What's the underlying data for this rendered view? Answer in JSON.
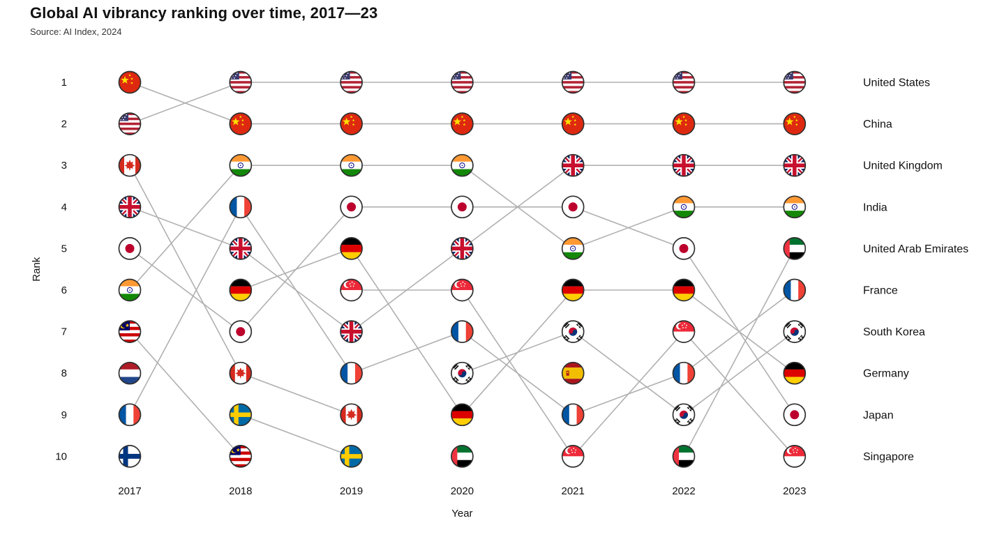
{
  "colors": {
    "line": "#b0b0b0",
    "text": "#111111",
    "subtitle": "#333333",
    "marker_ring": "#2f2f2f"
  },
  "chart_data": {
    "type": "bump",
    "title": "Global AI vibrancy ranking over time, 2017—23",
    "source": "Source: AI Index, 2024",
    "xlabel": "Year",
    "ylabel": "Rank",
    "years": [
      2017,
      2018,
      2019,
      2020,
      2021,
      2022,
      2023
    ],
    "ranks": [
      1,
      2,
      3,
      4,
      5,
      6,
      7,
      8,
      9,
      10
    ],
    "legend_position": "right",
    "grid": false,
    "series": [
      {
        "name": "United States",
        "flag": "us",
        "ranks": [
          2,
          1,
          1,
          1,
          1,
          1,
          1
        ]
      },
      {
        "name": "China",
        "flag": "cn",
        "ranks": [
          1,
          2,
          2,
          2,
          2,
          2,
          2
        ]
      },
      {
        "name": "United Kingdom",
        "flag": "gb",
        "ranks": [
          4,
          5,
          7,
          5,
          3,
          3,
          3
        ]
      },
      {
        "name": "India",
        "flag": "in",
        "ranks": [
          6,
          3,
          3,
          3,
          5,
          4,
          4
        ]
      },
      {
        "name": "United Arab Emirates",
        "flag": "ae",
        "ranks": [
          null,
          null,
          null,
          10,
          null,
          10,
          5
        ]
      },
      {
        "name": "France",
        "flag": "fr",
        "ranks": [
          9,
          4,
          8,
          7,
          9,
          8,
          6
        ]
      },
      {
        "name": "South Korea",
        "flag": "kr",
        "ranks": [
          null,
          null,
          null,
          8,
          7,
          9,
          7
        ]
      },
      {
        "name": "Germany",
        "flag": "de",
        "ranks": [
          null,
          6,
          5,
          9,
          6,
          6,
          8
        ]
      },
      {
        "name": "Japan",
        "flag": "jp",
        "ranks": [
          5,
          7,
          4,
          4,
          4,
          5,
          9
        ]
      },
      {
        "name": "Singapore",
        "flag": "sg",
        "ranks": [
          null,
          null,
          6,
          6,
          10,
          7,
          10
        ]
      },
      {
        "name": "Canada",
        "flag": "ca",
        "ranks": [
          3,
          8,
          9,
          null,
          null,
          null,
          null
        ]
      },
      {
        "name": "Malaysia",
        "flag": "my",
        "ranks": [
          7,
          10,
          null,
          null,
          null,
          null,
          null
        ]
      },
      {
        "name": "Netherlands",
        "flag": "nl",
        "ranks": [
          8,
          null,
          null,
          null,
          null,
          null,
          null
        ]
      },
      {
        "name": "Sweden",
        "flag": "se",
        "ranks": [
          null,
          9,
          10,
          null,
          null,
          null,
          null
        ]
      },
      {
        "name": "Finland",
        "flag": "fi",
        "ranks": [
          10,
          null,
          null,
          null,
          null,
          null,
          null
        ]
      },
      {
        "name": "Spain",
        "flag": "es",
        "ranks": [
          null,
          null,
          null,
          null,
          8,
          null,
          null
        ]
      }
    ],
    "right_labels": [
      "United States",
      "China",
      "United Kingdom",
      "India",
      "United Arab Emirates",
      "France",
      "South Korea",
      "Germany",
      "Japan",
      "Singapore"
    ]
  }
}
